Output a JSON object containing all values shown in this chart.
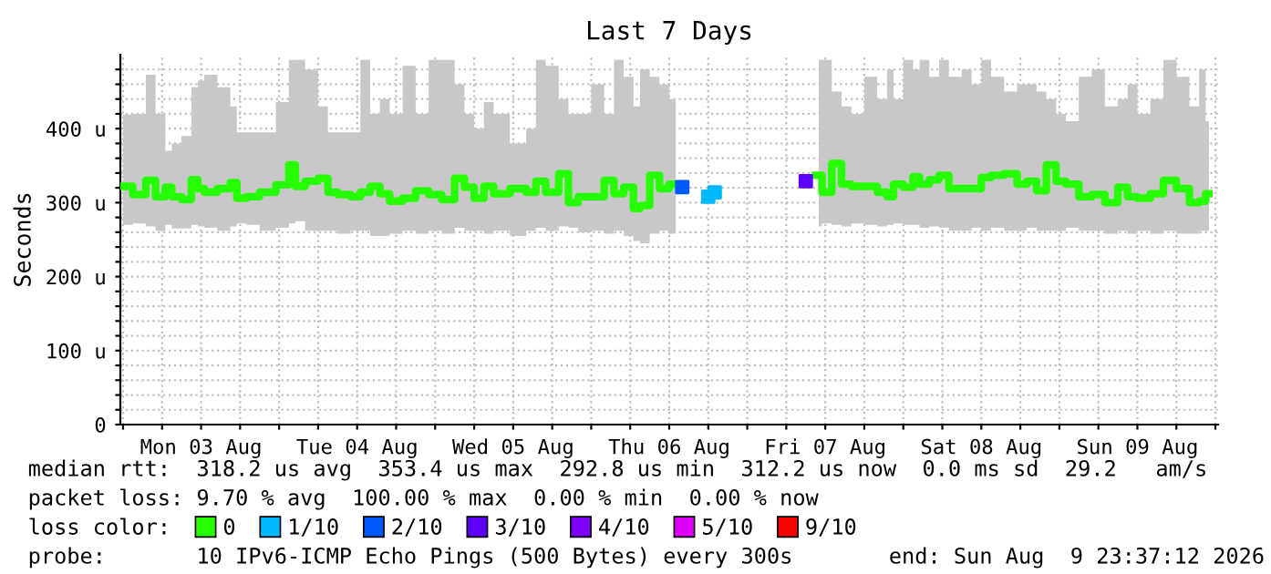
{
  "chart_data": {
    "type": "step",
    "title": "Last 7 Days",
    "ylabel": "Seconds",
    "xlim": [
      "2026-08-02T23:35",
      "2026-08-10T00:25"
    ],
    "ylim": [
      0,
      500
    ],
    "xticks": [
      {
        "value": "2026-08-03T00:00",
        "label": null
      },
      {
        "value": "2026-08-03T06:00",
        "label": null
      },
      {
        "value": "2026-08-03T12:00",
        "label": "Mon 03 Aug"
      },
      {
        "value": "2026-08-03T18:00",
        "label": null
      },
      {
        "value": "2026-08-04T00:00",
        "label": null
      },
      {
        "value": "2026-08-04T06:00",
        "label": null
      },
      {
        "value": "2026-08-04T12:00",
        "label": "Tue 04 Aug"
      },
      {
        "value": "2026-08-04T18:00",
        "label": null
      },
      {
        "value": "2026-08-05T00:00",
        "label": null
      },
      {
        "value": "2026-08-05T06:00",
        "label": null
      },
      {
        "value": "2026-08-05T12:00",
        "label": "Wed 05 Aug"
      },
      {
        "value": "2026-08-05T18:00",
        "label": null
      },
      {
        "value": "2026-08-06T00:00",
        "label": null
      },
      {
        "value": "2026-08-06T06:00",
        "label": null
      },
      {
        "value": "2026-08-06T12:00",
        "label": "Thu 06 Aug"
      },
      {
        "value": "2026-08-06T18:00",
        "label": null
      },
      {
        "value": "2026-08-07T00:00",
        "label": null
      },
      {
        "value": "2026-08-07T06:00",
        "label": null
      },
      {
        "value": "2026-08-07T12:00",
        "label": "Fri 07 Aug"
      },
      {
        "value": "2026-08-07T18:00",
        "label": null
      },
      {
        "value": "2026-08-08T00:00",
        "label": null
      },
      {
        "value": "2026-08-08T06:00",
        "label": null
      },
      {
        "value": "2026-08-08T12:00",
        "label": "Sat 08 Aug"
      },
      {
        "value": "2026-08-08T18:00",
        "label": null
      },
      {
        "value": "2026-08-09T00:00",
        "label": null
      },
      {
        "value": "2026-08-09T06:00",
        "label": null
      },
      {
        "value": "2026-08-09T12:00",
        "label": "Sun 09 Aug"
      },
      {
        "value": "2026-08-09T18:00",
        "label": null
      },
      {
        "value": "2026-08-10T00:00",
        "label": null
      }
    ],
    "yticks": [
      0,
      {
        "value": 20,
        "label": null
      },
      {
        "value": 40,
        "label": null
      },
      {
        "value": 60,
        "label": null
      },
      {
        "value": 80,
        "label": null
      },
      {
        "value": 100,
        "label": "100 u"
      },
      {
        "value": 120,
        "label": null
      },
      {
        "value": 140,
        "label": null
      },
      {
        "value": 160,
        "label": null
      },
      {
        "value": 180,
        "label": null
      },
      {
        "value": 200,
        "label": "200 u"
      },
      {
        "value": 220,
        "label": null
      },
      {
        "value": 240,
        "label": null
      },
      {
        "value": 260,
        "label": null
      },
      {
        "value": 280,
        "label": null
      },
      {
        "value": 300,
        "label": "300 u"
      },
      {
        "value": 320,
        "label": null
      },
      {
        "value": 340,
        "label": null
      },
      {
        "value": 360,
        "label": null
      },
      {
        "value": 380,
        "label": null
      },
      {
        "value": 400,
        "label": "400 u"
      },
      {
        "value": 420,
        "label": null
      },
      {
        "value": 440,
        "label": null
      },
      {
        "value": 460,
        "label": null
      },
      {
        "value": 480,
        "label": null
      }
    ],
    "grid": true,
    "legend": "bottom",
    "legend_title": "loss color:",
    "series": [
      {
        "name": "0",
        "color": "#26ff00",
        "x": [
          "2026-08-03T00:00",
          "2026-08-03T03:00",
          "2026-08-03T04:00",
          "2026-08-03T06:00",
          "2026-08-03T07:00",
          "2026-08-03T08:00",
          "2026-08-03T10:00",
          "2026-08-03T11:00",
          "2026-08-03T12:00",
          "2026-08-03T13:00",
          "2026-08-03T16:00",
          "2026-08-03T17:00",
          "2026-08-03T18:00",
          "2026-08-03T20:00",
          "2026-08-03T22:00",
          "2026-08-04T01:00",
          "2026-08-04T02:00",
          "2026-08-04T03:00",
          "2026-08-04T05:00",
          "2026-08-04T07:00",
          "2026-08-04T08:00",
          "2026-08-04T10:00",
          "2026-08-04T12:00",
          "2026-08-04T13:00",
          "2026-08-04T15:00",
          "2026-08-04T16:00",
          "2026-08-04T18:00",
          "2026-08-04T20:00",
          "2026-08-04T22:00",
          "2026-08-05T00:00",
          "2026-08-05T02:00",
          "2026-08-05T04:00",
          "2026-08-05T05:00",
          "2026-08-05T07:00",
          "2026-08-05T08:00",
          "2026-08-05T10:00",
          "2026-08-05T13:00",
          "2026-08-05T15:00",
          "2026-08-05T16:00",
          "2026-08-05T18:00",
          "2026-08-05T20:00",
          "2026-08-05T21:00",
          "2026-08-05T23:00",
          "2026-08-06T01:00",
          "2026-08-06T03:00",
          "2026-08-06T04:00",
          "2026-08-06T06:00",
          "2026-08-06T07:00",
          "2026-08-06T08:00",
          "2026-08-06T10:00",
          "2026-08-06T11:00",
          "2026-08-06T13:00",
          "2026-08-06T14:00",
          "2026-08-07T10:00",
          "2026-08-07T11:00",
          "2026-08-07T12:00",
          "2026-08-07T14:00",
          "2026-08-07T15:00",
          "2026-08-07T17:00",
          "2026-08-07T19:00",
          "2026-08-07T21:00",
          "2026-08-07T22:00",
          "2026-08-07T23:00",
          "2026-08-08T01:00",
          "2026-08-08T02:00",
          "2026-08-08T03:00",
          "2026-08-08T05:00",
          "2026-08-08T06:00",
          "2026-08-08T08:00",
          "2026-08-08T10:00",
          "2026-08-08T11:00",
          "2026-08-08T13:00",
          "2026-08-08T14:00",
          "2026-08-08T17:00",
          "2026-08-08T18:00",
          "2026-08-08T20:00",
          "2026-08-08T21:00",
          "2026-08-08T23:00",
          "2026-08-09T00:00",
          "2026-08-09T02:00",
          "2026-08-09T04:00",
          "2026-08-09T06:00",
          "2026-08-09T08:00",
          "2026-08-09T10:00",
          "2026-08-09T11:00",
          "2026-08-09T13:00",
          "2026-08-09T15:00",
          "2026-08-09T17:00",
          "2026-08-09T19:00",
          "2026-08-09T21:00",
          "2026-08-09T22:00",
          "2026-08-09T23:00"
        ],
        "values": [
          322,
          311,
          330,
          308,
          321,
          308,
          304,
          331,
          319,
          314,
          319,
          327,
          306,
          308,
          314,
          324,
          351,
          322,
          329,
          333,
          314,
          311,
          308,
          314,
          322,
          312,
          302,
          306,
          316,
          311,
          304,
          333,
          321,
          306,
          322,
          312,
          319,
          314,
          329,
          314,
          339,
          300,
          308,
          308,
          330,
          312,
          321,
          292,
          296,
          337,
          319,
          325,
          null,
          null,
          337,
          314,
          353,
          325,
          322,
          322,
          314,
          308,
          325,
          321,
          335,
          325,
          331,
          337,
          319,
          319,
          319,
          334,
          337,
          339,
          325,
          329,
          316,
          351,
          329,
          325,
          308,
          311,
          300,
          321,
          308,
          306,
          312,
          330,
          319,
          300,
          302,
          312
        ],
        "lower": [
          270,
          272,
          268,
          262,
          270,
          265,
          265,
          270,
          268,
          266,
          262,
          268,
          272,
          270,
          262,
          266,
          272,
          275,
          262,
          262,
          262,
          258,
          262,
          262,
          255,
          255,
          258,
          262,
          258,
          262,
          258,
          266,
          262,
          262,
          258,
          262,
          255,
          262,
          266,
          262,
          268,
          266,
          260,
          262,
          258,
          262,
          255,
          248,
          245,
          258,
          262,
          258,
          null,
          null,
          268,
          272,
          270,
          268,
          272,
          270,
          268,
          270,
          272,
          270,
          270,
          266,
          268,
          266,
          262,
          262,
          266,
          262,
          266,
          262,
          262,
          266,
          262,
          262,
          262,
          266,
          262,
          262,
          258,
          262,
          258,
          262,
          258,
          262,
          258,
          258,
          262,
          262
        ],
        "upper": [
          419,
          420,
          473,
          420,
          370,
          380,
          390,
          456,
          465,
          473,
          456,
          430,
          395,
          395,
          395,
          436,
          493,
          493,
          480,
          430,
          395,
          395,
          395,
          493,
          420,
          440,
          420,
          485,
          420,
          493,
          493,
          460,
          420,
          400,
          436,
          420,
          380,
          400,
          493,
          485,
          440,
          420,
          420,
          460,
          420,
          493,
          470,
          430,
          480,
          470,
          460,
          440,
          null,
          null,
          493,
          493,
          450,
          430,
          420,
          470,
          440,
          480,
          440,
          493,
          480,
          493,
          470,
          493,
          470,
          480,
          460,
          493,
          470,
          450,
          460,
          460,
          450,
          440,
          420,
          410,
          470,
          480,
          430,
          440,
          460,
          420,
          440,
          493,
          470,
          430,
          480,
          410
        ]
      },
      {
        "name": "1/10",
        "color": "#00b8ff",
        "type": "scatter",
        "marker": "square",
        "x": [
          "2026-08-06T18:00",
          "2026-08-06T19:00"
        ],
        "values": [
          308,
          314
        ]
      },
      {
        "name": "2/10",
        "color": "#0059ff",
        "type": "scatter",
        "marker": "square",
        "x": [
          "2026-08-06T14:00"
        ],
        "values": [
          321
        ]
      },
      {
        "name": "3/10",
        "color": "#5e00ff",
        "type": "scatter",
        "marker": "square",
        "x": [
          "2026-08-07T09:00"
        ],
        "values": [
          329
        ]
      },
      {
        "name": "4/10",
        "color": "#7e00ff",
        "type": "scatter",
        "marker": "square"
      },
      {
        "name": "5/10",
        "color": "#dd00ff",
        "type": "scatter",
        "marker": "square"
      },
      {
        "name": "9/10",
        "color": "#ff0000",
        "type": "scatter",
        "marker": "square"
      }
    ],
    "annotations": [
      "median rtt:  318.2 us avg  353.4 us max  292.8 us min  312.2 us now  0.0 ms sd  29.2   am/s",
      "packet loss: 9.70 % avg  100.00 % max  0.00 % min  0.00 % now",
      "probe:       10 IPv6-ICMP Echo Pings (500 Bytes) every 300s",
      "end: Sun Aug  9 23:37:12 2026"
    ]
  }
}
